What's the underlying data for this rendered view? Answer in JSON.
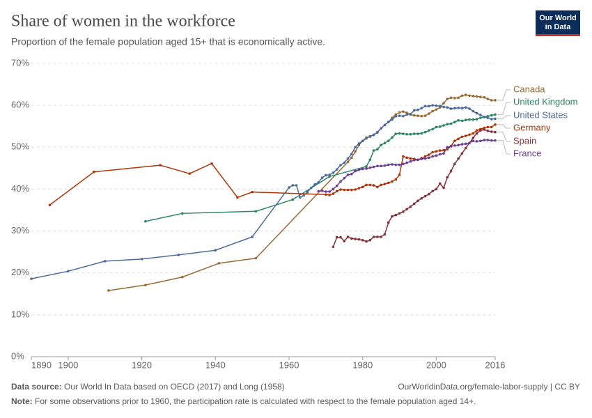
{
  "chart_data": {
    "type": "line",
    "title": "Share of women in the workforce",
    "subtitle": "Proportion of the female population aged 15+ that is economically active.",
    "logo": [
      "Our World",
      "in Data"
    ],
    "source_label": "Data source:",
    "source": "Our World In Data based on OECD (2017) and Long (1958)",
    "url_license": "OurWorldinData.org/female-labor-supply | CC BY",
    "note_label": "Note:",
    "note": "For some observations prior to 1960, the participation rate is calculated with respect to the female population aged 14+.",
    "xlim": [
      1890,
      2016
    ],
    "xticks": [
      1890,
      1900,
      1920,
      1940,
      1960,
      1980,
      2000,
      2016
    ],
    "ylim": [
      0,
      70
    ],
    "yticks": [
      {
        "value": 0,
        "label": "0%"
      },
      {
        "value": 10,
        "label": "10%"
      },
      {
        "value": 20,
        "label": "20%"
      },
      {
        "value": 30,
        "label": "30%"
      },
      {
        "value": 40,
        "label": "40%"
      },
      {
        "value": 50,
        "label": "50%"
      },
      {
        "value": 60,
        "label": "60%"
      },
      {
        "value": 70,
        "label": "70%"
      }
    ],
    "grid": true,
    "series": [
      {
        "name": "Canada",
        "color": "#9a6a35",
        "x": [
          1911,
          1921,
          1931,
          1941,
          1951,
          1976,
          1977,
          1978,
          1979,
          1980,
          1981,
          1982,
          1983,
          1984,
          1985,
          1986,
          1987,
          1988,
          1989,
          1990,
          1991,
          1992,
          1993,
          1994,
          1995,
          1996,
          1997,
          1998,
          1999,
          2000,
          2001,
          2002,
          2003,
          2004,
          2005,
          2006,
          2007,
          2008,
          2009,
          2010,
          2011,
          2012,
          2013,
          2014,
          2015,
          2016
        ],
        "values": [
          15.8,
          17.1,
          19.0,
          22.3,
          23.5,
          46.5,
          47.5,
          49,
          50.5,
          51.5,
          52.3,
          52.5,
          53,
          53.5,
          54.5,
          55.3,
          56,
          57,
          57.8,
          58.3,
          58.5,
          58.2,
          57.8,
          57.6,
          57.5,
          57.4,
          57.5,
          58,
          58.6,
          59,
          59.5,
          60.5,
          61.5,
          61.8,
          61.7,
          61.8,
          62.3,
          62.5,
          62.3,
          62.2,
          62.1,
          62,
          61.9,
          61.5,
          61.2,
          61.2
        ]
      },
      {
        "name": "United Kingdom",
        "color": "#2c8465",
        "x": [
          1921,
          1931,
          1951,
          1961,
          1971,
          1981,
          1982,
          1983,
          1984,
          1985,
          1986,
          1987,
          1988,
          1989,
          1990,
          1991,
          1992,
          1993,
          1994,
          1995,
          1996,
          1997,
          1998,
          1999,
          2000,
          2001,
          2002,
          2003,
          2004,
          2005,
          2006,
          2007,
          2008,
          2009,
          2010,
          2011,
          2012,
          2013,
          2014,
          2015,
          2016
        ],
        "values": [
          32.3,
          34.2,
          34.7,
          37.5,
          43,
          45.4,
          47,
          49.2,
          49.5,
          50.5,
          51,
          51.5,
          52.3,
          53.2,
          53.3,
          53.2,
          53.1,
          53.1,
          53.2,
          53.2,
          53.3,
          53.6,
          54,
          54.3,
          54.8,
          54.9,
          55.2,
          55.5,
          55.6,
          56,
          56.4,
          56.3,
          56.5,
          56.6,
          56.6,
          56.7,
          57,
          57.2,
          57.4,
          57.6,
          57.8
        ]
      },
      {
        "name": "United States",
        "color": "#4c6a9c",
        "x": [
          1890,
          1900,
          1910,
          1920,
          1930,
          1940,
          1950,
          1960,
          1961,
          1962,
          1963,
          1964,
          1965,
          1966,
          1967,
          1968,
          1969,
          1970,
          1971,
          1972,
          1973,
          1974,
          1975,
          1976,
          1977,
          1978,
          1979,
          1980,
          1981,
          1982,
          1983,
          1984,
          1985,
          1986,
          1987,
          1988,
          1989,
          1990,
          1991,
          1992,
          1993,
          1994,
          1995,
          1996,
          1997,
          1998,
          1999,
          2000,
          2001,
          2002,
          2003,
          2004,
          2005,
          2006,
          2007,
          2008,
          2009,
          2010,
          2011,
          2012,
          2013,
          2014,
          2015,
          2016
        ],
        "values": [
          18.6,
          20.4,
          22.8,
          23.3,
          24.3,
          25.4,
          28.6,
          40.4,
          40.9,
          40.9,
          38,
          38.5,
          39.3,
          40.3,
          41.1,
          41.6,
          42.7,
          43.3,
          43.4,
          43.9,
          44.7,
          45.7,
          46.3,
          47.3,
          48.4,
          50,
          50.9,
          51.5,
          52.1,
          52.6,
          52.9,
          53.6,
          54.5,
          55.3,
          56,
          56.6,
          57.4,
          57.5,
          57.4,
          57.8,
          57.9,
          58.8,
          58.9,
          59.3,
          59.8,
          59.8,
          60,
          59.9,
          59.8,
          59.6,
          59.5,
          59.2,
          59.3,
          59.4,
          59.3,
          59.5,
          59.2,
          58.6,
          58.1,
          57.7,
          57.2,
          57,
          56.7,
          56.8
        ]
      },
      {
        "name": "Germany",
        "color": "#b13507",
        "x": [
          1895,
          1907,
          1925,
          1933,
          1939,
          1946,
          1950,
          1970,
          1971,
          1972,
          1973,
          1974,
          1975,
          1976,
          1977,
          1978,
          1979,
          1980,
          1981,
          1982,
          1983,
          1984,
          1985,
          1986,
          1987,
          1988,
          1989,
          1990,
          1991,
          1992,
          1993,
          1994,
          1995,
          1996,
          1997,
          1998,
          1999,
          2000,
          2001,
          2002,
          2003,
          2004,
          2005,
          2006,
          2007,
          2008,
          2009,
          2010,
          2011,
          2012,
          2013,
          2014,
          2015,
          2016
        ],
        "values": [
          36.2,
          44.1,
          45.7,
          43.7,
          46.1,
          38,
          39.3,
          38.7,
          38.6,
          38.9,
          39.5,
          39.9,
          39.8,
          39.8,
          39.8,
          39.9,
          40.2,
          40.5,
          41,
          41,
          40.9,
          40.5,
          41,
          41.2,
          41.5,
          41.8,
          42.3,
          43.4,
          47.8,
          47.5,
          47.3,
          47.2,
          47,
          47.4,
          47.8,
          48.2,
          48.8,
          49,
          49.2,
          49.3,
          49.5,
          50.3,
          51.5,
          52,
          52.5,
          52.7,
          53,
          53.3,
          54,
          54.3,
          54.6,
          54.8,
          54.8,
          55.4
        ]
      },
      {
        "name": "Spain",
        "color": "#883039",
        "x": [
          1972,
          1973,
          1974,
          1975,
          1976,
          1977,
          1978,
          1979,
          1980,
          1981,
          1982,
          1983,
          1984,
          1985,
          1986,
          1987,
          1988,
          1989,
          1990,
          1991,
          1992,
          1993,
          1994,
          1995,
          1996,
          1997,
          1998,
          1999,
          2000,
          2001,
          2002,
          2003,
          2004,
          2005,
          2006,
          2007,
          2008,
          2009,
          2010,
          2011,
          2012,
          2013,
          2014,
          2015,
          2016
        ],
        "values": [
          26.2,
          28.5,
          28.5,
          27.6,
          28.6,
          28.2,
          28.1,
          28,
          27.8,
          27.5,
          27.8,
          28.6,
          28.6,
          28.6,
          29.2,
          32,
          33.5,
          33.8,
          34.2,
          34.6,
          35.2,
          35.8,
          36.5,
          37.2,
          37.8,
          38.3,
          38.8,
          39.5,
          40,
          41.3,
          40.3,
          42.8,
          44.3,
          46,
          47.3,
          48.5,
          49.8,
          51,
          52.2,
          53.3,
          54,
          54.2,
          53.9,
          53.7,
          53.6
        ]
      },
      {
        "name": "France",
        "color": "#6d3e91",
        "x": [
          1968,
          1969,
          1970,
          1971,
          1972,
          1973,
          1974,
          1975,
          1976,
          1977,
          1978,
          1979,
          1980,
          1981,
          1982,
          1983,
          1984,
          1985,
          1986,
          1987,
          1988,
          1989,
          1990,
          1991,
          1992,
          1993,
          1994,
          1995,
          1996,
          1997,
          1998,
          1999,
          2000,
          2001,
          2002,
          2003,
          2004,
          2005,
          2006,
          2007,
          2008,
          2009,
          2010,
          2011,
          2012,
          2013,
          2014,
          2015,
          2016
        ],
        "values": [
          39.5,
          39.6,
          39.4,
          39.4,
          40,
          40.8,
          41.8,
          42.6,
          43.4,
          43.6,
          44.3,
          44.6,
          44.8,
          44.9,
          45.1,
          45.3,
          45.5,
          45.5,
          45.6,
          45.8,
          45.9,
          45.8,
          45.8,
          46,
          46.3,
          46.6,
          46.9,
          47,
          47.2,
          47.3,
          47.5,
          47.8,
          48,
          48.3,
          48.5,
          50,
          50.2,
          50.4,
          50.5,
          50.7,
          50.8,
          51,
          51.5,
          51.4,
          51.5,
          51.7,
          51.7,
          51.6,
          51.6
        ]
      }
    ]
  }
}
